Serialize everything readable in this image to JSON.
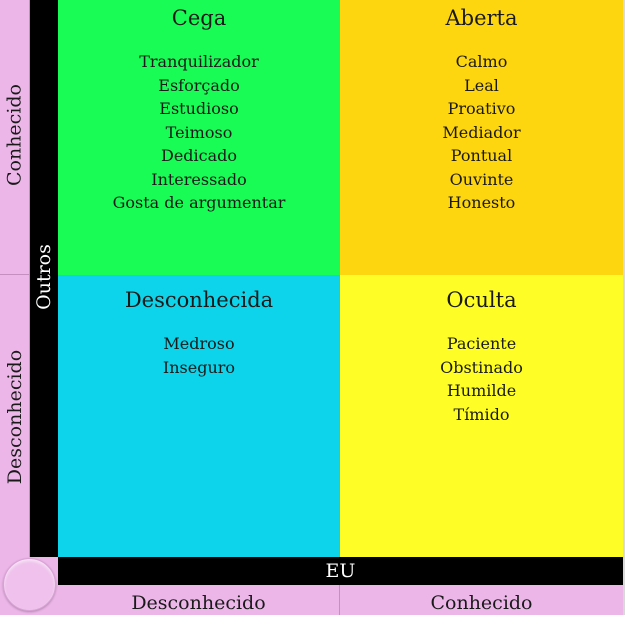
{
  "axes": {
    "outros_label": "Outros",
    "eu_label": "EU",
    "left_top_label": "Conhecido",
    "left_bottom_label": "Desconhecido",
    "bottom_left_label": "Desconhecido",
    "bottom_right_label": "Conhecido"
  },
  "quadrants": {
    "blind": {
      "title": "Cega",
      "color": "#18fc55",
      "items": [
        "Tranquilizador",
        "Esforçado",
        "Estudioso",
        "Teimoso",
        "Dedicado",
        "Interessado",
        "Gosta de argumentar"
      ]
    },
    "open": {
      "title": "Aberta",
      "color": "#fed60f",
      "items": [
        "Calmo",
        "Leal",
        "Proativo",
        "Mediador",
        "Pontual",
        "Ouvinte",
        "Honesto"
      ]
    },
    "unknown": {
      "title": "Desconhecida",
      "color": "#0dd4ea",
      "items": [
        "Medroso",
        "Inseguro"
      ]
    },
    "hidden": {
      "title": "Oculta",
      "color": "#fefe26",
      "items": [
        "Paciente",
        "Obstinado",
        "Humilde",
        "Tímido"
      ]
    }
  },
  "colors": {
    "axis_bar": "#000000",
    "label_panel": "#ecb6e8"
  }
}
